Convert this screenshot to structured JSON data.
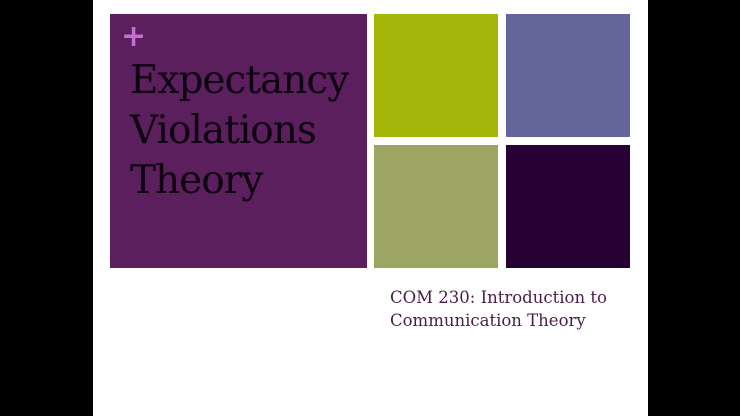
{
  "slide": {
    "plus_icon": "plus-icon",
    "title_lines": [
      "Expectancy",
      "Violations",
      "Theory"
    ],
    "subtitle_lines": [
      "COM 230: Introduction to",
      "Communication Theory"
    ],
    "colors": {
      "main_tile": "#5c1f5e",
      "green_tile": "#a5b60a",
      "blue_tile": "#64659b",
      "olive_tile": "#9ca662",
      "dark_tile": "#270034",
      "plus": "#c36fcf"
    }
  }
}
